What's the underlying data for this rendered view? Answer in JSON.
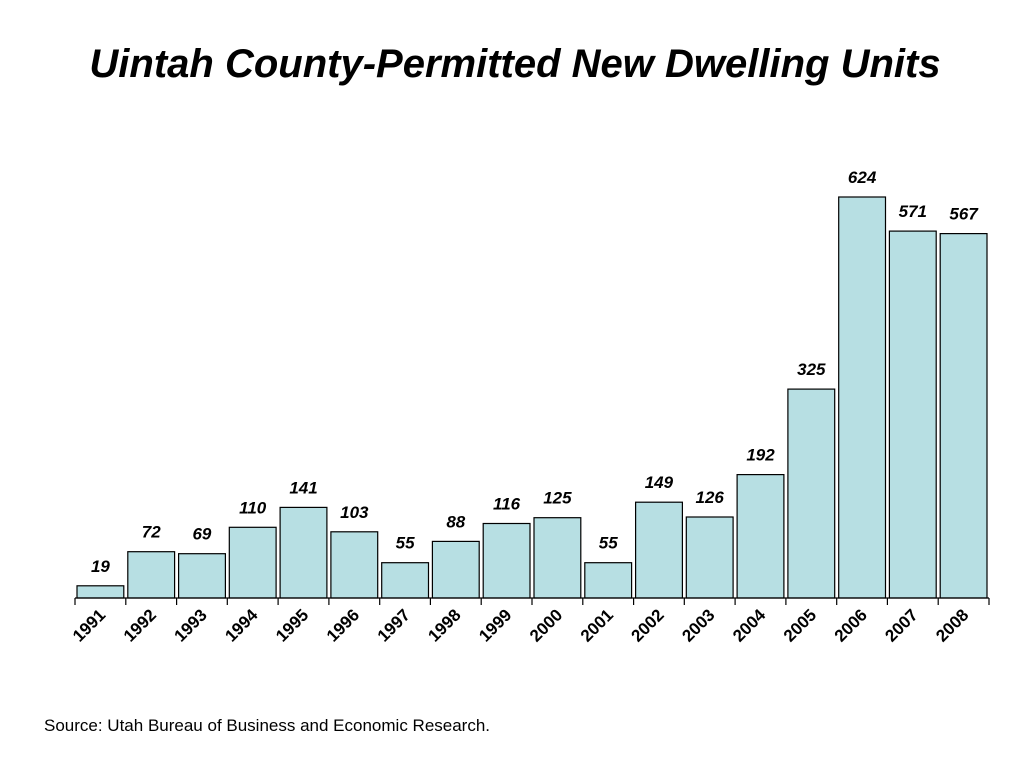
{
  "chart_data": {
    "type": "bar",
    "title": "Uintah County-Permitted New Dwelling Units",
    "categories": [
      "1991",
      "1992",
      "1993",
      "1994",
      "1995",
      "1996",
      "1997",
      "1998",
      "1999",
      "2000",
      "2001",
      "2002",
      "2003",
      "2004",
      "2005",
      "2006",
      "2007",
      "2008"
    ],
    "values": [
      19,
      72,
      69,
      110,
      141,
      103,
      55,
      88,
      116,
      125,
      55,
      149,
      126,
      192,
      325,
      624,
      571,
      567
    ],
    "xlabel": "",
    "ylabel": "",
    "ylim": [
      0,
      624
    ],
    "grid": false,
    "legend": "none",
    "bar_color": "#b7dfe3",
    "bar_edge_color": "#000000"
  },
  "footer": {
    "source": "Source: Utah Bureau of Business and Economic Research."
  }
}
